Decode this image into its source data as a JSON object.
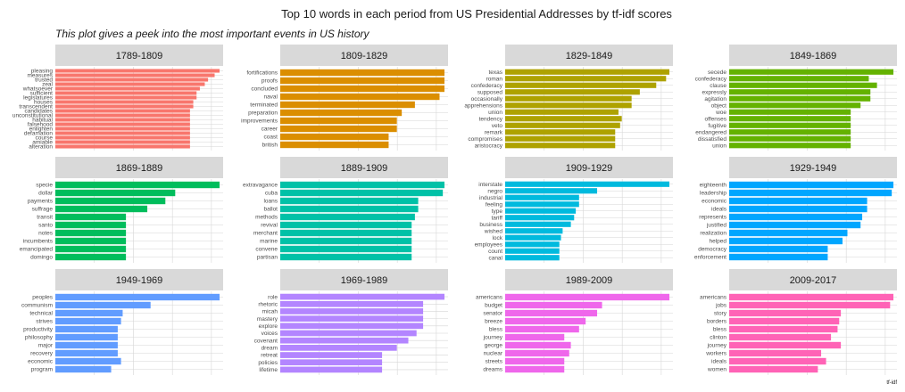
{
  "chart_data": {
    "type": "bar",
    "orientation": "horizontal",
    "title": "Top 10 words in each period from US Presidential Addresses by tf-idf scores",
    "subtitle": "This plot gives a peek into the most important events in US history",
    "xlabel": "tf-idf",
    "xlim": [
      0,
      1
    ],
    "grid": true,
    "legend": "none",
    "panels": [
      {
        "name": "1789-1809",
        "color": "#F8766D",
        "words": [
          "pleasing",
          "measures",
          "trusted",
          "zeal",
          "whatsoever",
          "sufficient",
          "legislatures",
          "houses",
          "transcendent",
          "candidates",
          "unconstitutional",
          "habitual",
          "falsehood",
          "enlighten",
          "defamation",
          "course",
          "amiable",
          "alteration"
        ],
        "values": [
          1.0,
          0.97,
          0.93,
          0.91,
          0.88,
          0.86,
          0.86,
          0.84,
          0.84,
          0.82,
          0.82,
          0.82,
          0.82,
          0.82,
          0.82,
          0.82,
          0.82,
          0.82
        ]
      },
      {
        "name": "1809-1829",
        "color": "#DB8E00",
        "words": [
          "fortifications",
          "proofs",
          "concluded",
          "naval",
          "terminated",
          "preparation",
          "improvements",
          "career",
          "coast",
          "british"
        ],
        "values": [
          1.0,
          1.0,
          1.0,
          0.97,
          0.82,
          0.74,
          0.71,
          0.71,
          0.66,
          0.66
        ]
      },
      {
        "name": "1829-1849",
        "color": "#AEA200",
        "words": [
          "texas",
          "roman",
          "confederacy",
          "supposed",
          "occasionally",
          "apprehensions",
          "union",
          "tendency",
          "veto",
          "remark",
          "compromises",
          "aristocracy"
        ],
        "values": [
          1.0,
          0.98,
          0.92,
          0.82,
          0.77,
          0.77,
          0.69,
          0.71,
          0.7,
          0.67,
          0.67,
          0.67
        ]
      },
      {
        "name": "1849-1869",
        "color": "#64B200",
        "words": [
          "secede",
          "confederacy",
          "clause",
          "expressly",
          "agitation",
          "object",
          "woe",
          "offenses",
          "fugitive",
          "endangered",
          "dissatisfied",
          "union"
        ],
        "values": [
          1.0,
          0.85,
          0.9,
          0.86,
          0.86,
          0.8,
          0.74,
          0.74,
          0.74,
          0.74,
          0.74,
          0.74
        ]
      },
      {
        "name": "1869-1889",
        "color": "#00BD5C",
        "words": [
          "specie",
          "dollar",
          "payments",
          "suffrage",
          "transit",
          "santo",
          "notes",
          "incumbents",
          "emancipated",
          "domingo"
        ],
        "values": [
          1.0,
          0.73,
          0.67,
          0.56,
          0.43,
          0.43,
          0.43,
          0.43,
          0.43,
          0.43
        ]
      },
      {
        "name": "1889-1909",
        "color": "#00C1A7",
        "words": [
          "extravagance",
          "cuba",
          "loans",
          "ballot",
          "methods",
          "revival",
          "merchant",
          "marine",
          "convene",
          "partisan"
        ],
        "values": [
          1.0,
          0.99,
          0.84,
          0.84,
          0.82,
          0.8,
          0.8,
          0.8,
          0.8,
          0.8
        ]
      },
      {
        "name": "1909-1929",
        "color": "#00BADE",
        "words": [
          "interstate",
          "negro",
          "industrial",
          "feeling",
          "type",
          "tariff",
          "business",
          "wished",
          "lock",
          "employees",
          "count",
          "canal"
        ],
        "values": [
          1.0,
          0.56,
          0.45,
          0.45,
          0.43,
          0.42,
          0.4,
          0.35,
          0.34,
          0.33,
          0.33,
          0.33
        ]
      },
      {
        "name": "1929-1949",
        "color": "#00A6FF",
        "words": [
          "eighteenth",
          "leadership",
          "economic",
          "ideals",
          "represents",
          "justified",
          "realization",
          "helped",
          "democracy",
          "enforcement"
        ],
        "values": [
          1.0,
          0.99,
          0.84,
          0.84,
          0.81,
          0.8,
          0.72,
          0.69,
          0.6,
          0.6
        ]
      },
      {
        "name": "1949-1969",
        "color": "#619CFF",
        "words": [
          "peoples",
          "communism",
          "technical",
          "strives",
          "productivity",
          "philosophy",
          "major",
          "recovery",
          "economic",
          "program"
        ],
        "values": [
          1.0,
          0.58,
          0.41,
          0.4,
          0.38,
          0.38,
          0.38,
          0.38,
          0.4,
          0.34
        ]
      },
      {
        "name": "1969-1989",
        "color": "#B385FF",
        "words": [
          "role",
          "rhetoric",
          "micah",
          "mastery",
          "explore",
          "voices",
          "covenant",
          "dream",
          "retreat",
          "policies",
          "lifetime"
        ],
        "values": [
          1.0,
          0.87,
          0.87,
          0.87,
          0.87,
          0.83,
          0.78,
          0.71,
          0.62,
          0.62,
          0.62
        ]
      },
      {
        "name": "1989-2009",
        "color": "#EF67EB",
        "words": [
          "americans",
          "budget",
          "senator",
          "breeze",
          "bless",
          "journey",
          "george",
          "nuclear",
          "streets",
          "dreams"
        ],
        "values": [
          1.0,
          0.59,
          0.56,
          0.49,
          0.45,
          0.36,
          0.4,
          0.39,
          0.36,
          0.36
        ]
      },
      {
        "name": "2009-2017",
        "color": "#FF63B6",
        "words": [
          "americans",
          "jobs",
          "story",
          "borders",
          "bless",
          "clinton",
          "journey",
          "workers",
          "ideals",
          "women"
        ],
        "values": [
          1.0,
          0.98,
          0.68,
          0.67,
          0.66,
          0.62,
          0.68,
          0.56,
          0.59,
          0.54
        ]
      }
    ]
  }
}
